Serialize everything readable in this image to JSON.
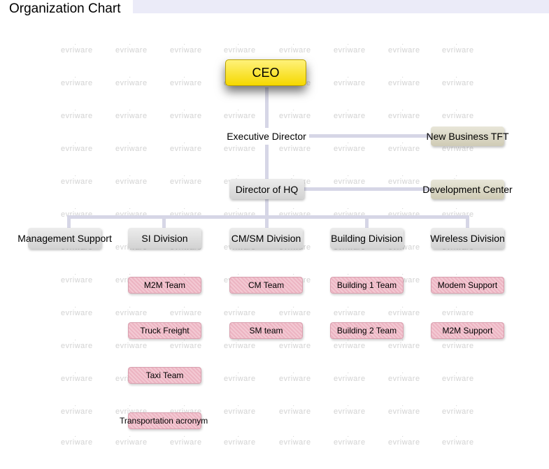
{
  "page": {
    "title": "Organization Chart"
  },
  "watermark": "evriware",
  "chart": {
    "ceo": "CEO",
    "executive_director": "Executive Director",
    "new_business_tft": "New Business TFT",
    "director_hq": "Director of HQ",
    "development_center": "Development Center",
    "divisions": [
      {
        "label": "Management Support",
        "teams": []
      },
      {
        "label": "SI Division",
        "teams": [
          "M2M Team",
          "Truck Freight",
          "Taxi Team",
          "Transportation acronym"
        ]
      },
      {
        "label": "CM/SM Division",
        "teams": [
          "CM Team",
          "SM team"
        ]
      },
      {
        "label": "Building Division",
        "teams": [
          "Building 1 Team",
          "Building 2 Team"
        ]
      },
      {
        "label": "Wireless Division",
        "teams": [
          "Modem Support",
          "M2M Support"
        ]
      }
    ]
  },
  "colors": {
    "ceo": "#f7dd10",
    "gray_node": "#d8d8d8",
    "khaki_node": "#d6d2bc",
    "team_node": "#f0bfcb",
    "connector": "#d6d6e6"
  }
}
